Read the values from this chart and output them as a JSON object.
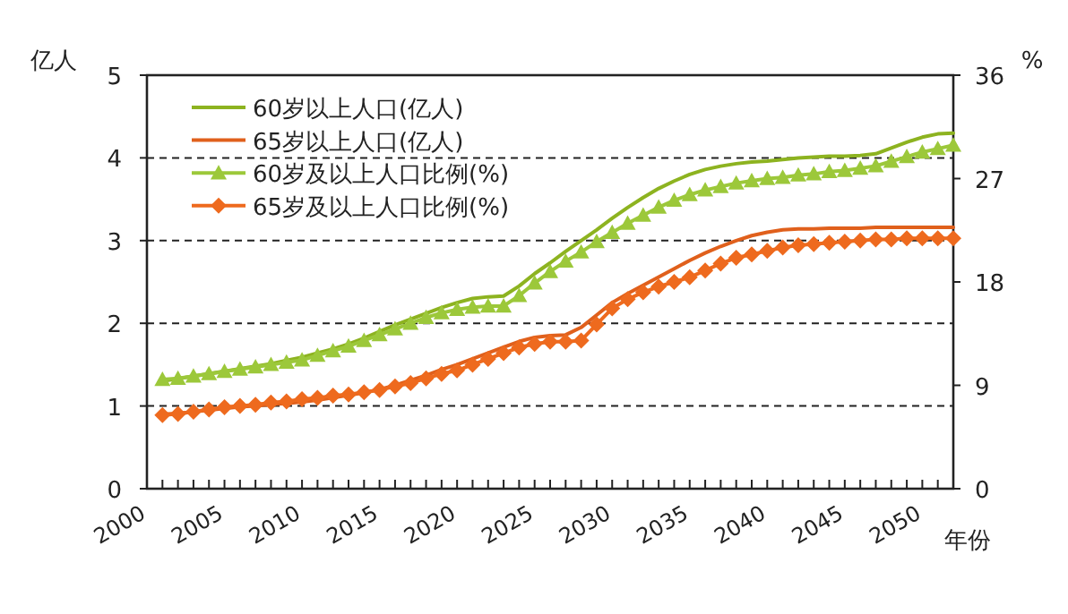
{
  "chart_data": {
    "type": "line",
    "xlabel": "年份",
    "ylabel": "亿人",
    "y2label": "%",
    "xlim": [
      2000,
      2052
    ],
    "ylim": [
      0,
      5
    ],
    "y2lim": [
      0,
      36
    ],
    "xticks": [
      2000,
      {
        "value": 2001,
        "label": null
      },
      {
        "value": 2002,
        "label": null
      },
      {
        "value": 2003,
        "label": null
      },
      {
        "value": 2004,
        "label": null
      },
      2005,
      {
        "value": 2006,
        "label": null
      },
      {
        "value": 2007,
        "label": null
      },
      {
        "value": 2008,
        "label": null
      },
      {
        "value": 2009,
        "label": null
      },
      2010,
      {
        "value": 2011,
        "label": null
      },
      {
        "value": 2012,
        "label": null
      },
      {
        "value": 2013,
        "label": null
      },
      {
        "value": 2014,
        "label": null
      },
      2015,
      {
        "value": 2016,
        "label": null
      },
      {
        "value": 2017,
        "label": null
      },
      {
        "value": 2018,
        "label": null
      },
      {
        "value": 2019,
        "label": null
      },
      2020,
      {
        "value": 2021,
        "label": null
      },
      {
        "value": 2022,
        "label": null
      },
      {
        "value": 2023,
        "label": null
      },
      {
        "value": 2024,
        "label": null
      },
      2025,
      {
        "value": 2026,
        "label": null
      },
      {
        "value": 2027,
        "label": null
      },
      {
        "value": 2028,
        "label": null
      },
      {
        "value": 2029,
        "label": null
      },
      2030,
      {
        "value": 2031,
        "label": null
      },
      {
        "value": 2032,
        "label": null
      },
      {
        "value": 2033,
        "label": null
      },
      {
        "value": 2034,
        "label": null
      },
      2035,
      {
        "value": 2036,
        "label": null
      },
      {
        "value": 2037,
        "label": null
      },
      {
        "value": 2038,
        "label": null
      },
      {
        "value": 2039,
        "label": null
      },
      2040,
      {
        "value": 2041,
        "label": null
      },
      {
        "value": 2042,
        "label": null
      },
      {
        "value": 2043,
        "label": null
      },
      {
        "value": 2044,
        "label": null
      },
      2045,
      {
        "value": 2046,
        "label": null
      },
      {
        "value": 2047,
        "label": null
      },
      {
        "value": 2048,
        "label": null
      },
      {
        "value": 2049,
        "label": null
      },
      2050,
      {
        "value": 2051,
        "label": null
      },
      {
        "value": 2052,
        "label": null
      }
    ],
    "yticks": [
      0,
      1,
      2,
      3,
      4,
      5
    ],
    "y2ticks": [
      0,
      9,
      18,
      27,
      36
    ],
    "x": [
      2001,
      2002,
      2003,
      2004,
      2005,
      2006,
      2007,
      2008,
      2009,
      2010,
      2011,
      2012,
      2013,
      2014,
      2015,
      2016,
      2017,
      2018,
      2019,
      2020,
      2021,
      2022,
      2023,
      2024,
      2025,
      2026,
      2027,
      2028,
      2029,
      2030,
      2031,
      2032,
      2033,
      2034,
      2035,
      2036,
      2037,
      2038,
      2039,
      2040,
      2041,
      2042,
      2043,
      2044,
      2045,
      2046,
      2047,
      2048,
      2049,
      2050,
      2051,
      2052
    ],
    "grid": "y",
    "legend": "top left",
    "series": [
      {
        "name": "60岁以上人口(亿人)",
        "color": "#8db320",
        "marker": "none",
        "values": [
          1.3,
          1.33,
          1.36,
          1.39,
          1.42,
          1.45,
          1.48,
          1.51,
          1.55,
          1.59,
          1.64,
          1.69,
          1.75,
          1.82,
          1.9,
          1.98,
          2.05,
          2.12,
          2.19,
          2.25,
          2.3,
          2.32,
          2.33,
          2.45,
          2.6,
          2.73,
          2.87,
          3.0,
          3.13,
          3.27,
          3.4,
          3.52,
          3.63,
          3.72,
          3.8,
          3.86,
          3.9,
          3.93,
          3.95,
          3.96,
          3.98,
          4.0,
          4.01,
          4.02,
          4.02,
          4.03,
          4.05,
          4.12,
          4.19,
          4.25,
          4.29,
          4.3
        ]
      },
      {
        "name": "65岁以上人口(亿人)",
        "color": "#e0601c",
        "marker": "none",
        "values": [
          0.9,
          0.91,
          0.93,
          0.95,
          0.97,
          0.99,
          1.0,
          1.02,
          1.03,
          1.05,
          1.07,
          1.1,
          1.13,
          1.16,
          1.2,
          1.25,
          1.31,
          1.37,
          1.44,
          1.5,
          1.57,
          1.64,
          1.71,
          1.78,
          1.83,
          1.85,
          1.86,
          1.95,
          2.1,
          2.25,
          2.36,
          2.46,
          2.56,
          2.66,
          2.76,
          2.85,
          2.93,
          3.0,
          3.06,
          3.1,
          3.13,
          3.14,
          3.14,
          3.15,
          3.15,
          3.15,
          3.16,
          3.16,
          3.16,
          3.16,
          3.16,
          3.16
        ]
      },
      {
        "name": "60岁及以上人口比例(%)",
        "color": "#9cc83a",
        "marker": "triangle",
        "axis": "y2",
        "values": [
          9.5,
          9.6,
          9.8,
          10.0,
          10.2,
          10.4,
          10.6,
          10.8,
          11.0,
          11.2,
          11.6,
          12.0,
          12.4,
          12.9,
          13.4,
          13.9,
          14.4,
          14.9,
          15.3,
          15.6,
          15.8,
          15.9,
          15.9,
          16.8,
          17.9,
          18.9,
          19.8,
          20.6,
          21.5,
          22.3,
          23.1,
          23.8,
          24.5,
          25.1,
          25.6,
          26.0,
          26.3,
          26.6,
          26.8,
          27.0,
          27.1,
          27.3,
          27.4,
          27.6,
          27.7,
          27.9,
          28.1,
          28.5,
          28.9,
          29.3,
          29.6,
          29.9
        ]
      },
      {
        "name": "65岁及以上人口比例(%)",
        "color": "#ee6a1e",
        "marker": "diamond",
        "axis": "y2",
        "values": [
          6.4,
          6.5,
          6.7,
          6.9,
          7.1,
          7.2,
          7.3,
          7.5,
          7.6,
          7.8,
          7.9,
          8.1,
          8.2,
          8.4,
          8.6,
          8.9,
          9.2,
          9.6,
          10.0,
          10.3,
          10.8,
          11.3,
          11.8,
          12.3,
          12.6,
          12.8,
          12.8,
          12.9,
          14.3,
          15.7,
          16.5,
          17.1,
          17.6,
          18.0,
          18.4,
          19.0,
          19.6,
          20.1,
          20.4,
          20.7,
          21.0,
          21.2,
          21.3,
          21.4,
          21.5,
          21.6,
          21.7,
          21.7,
          21.8,
          21.8,
          21.8,
          21.8
        ]
      }
    ]
  }
}
